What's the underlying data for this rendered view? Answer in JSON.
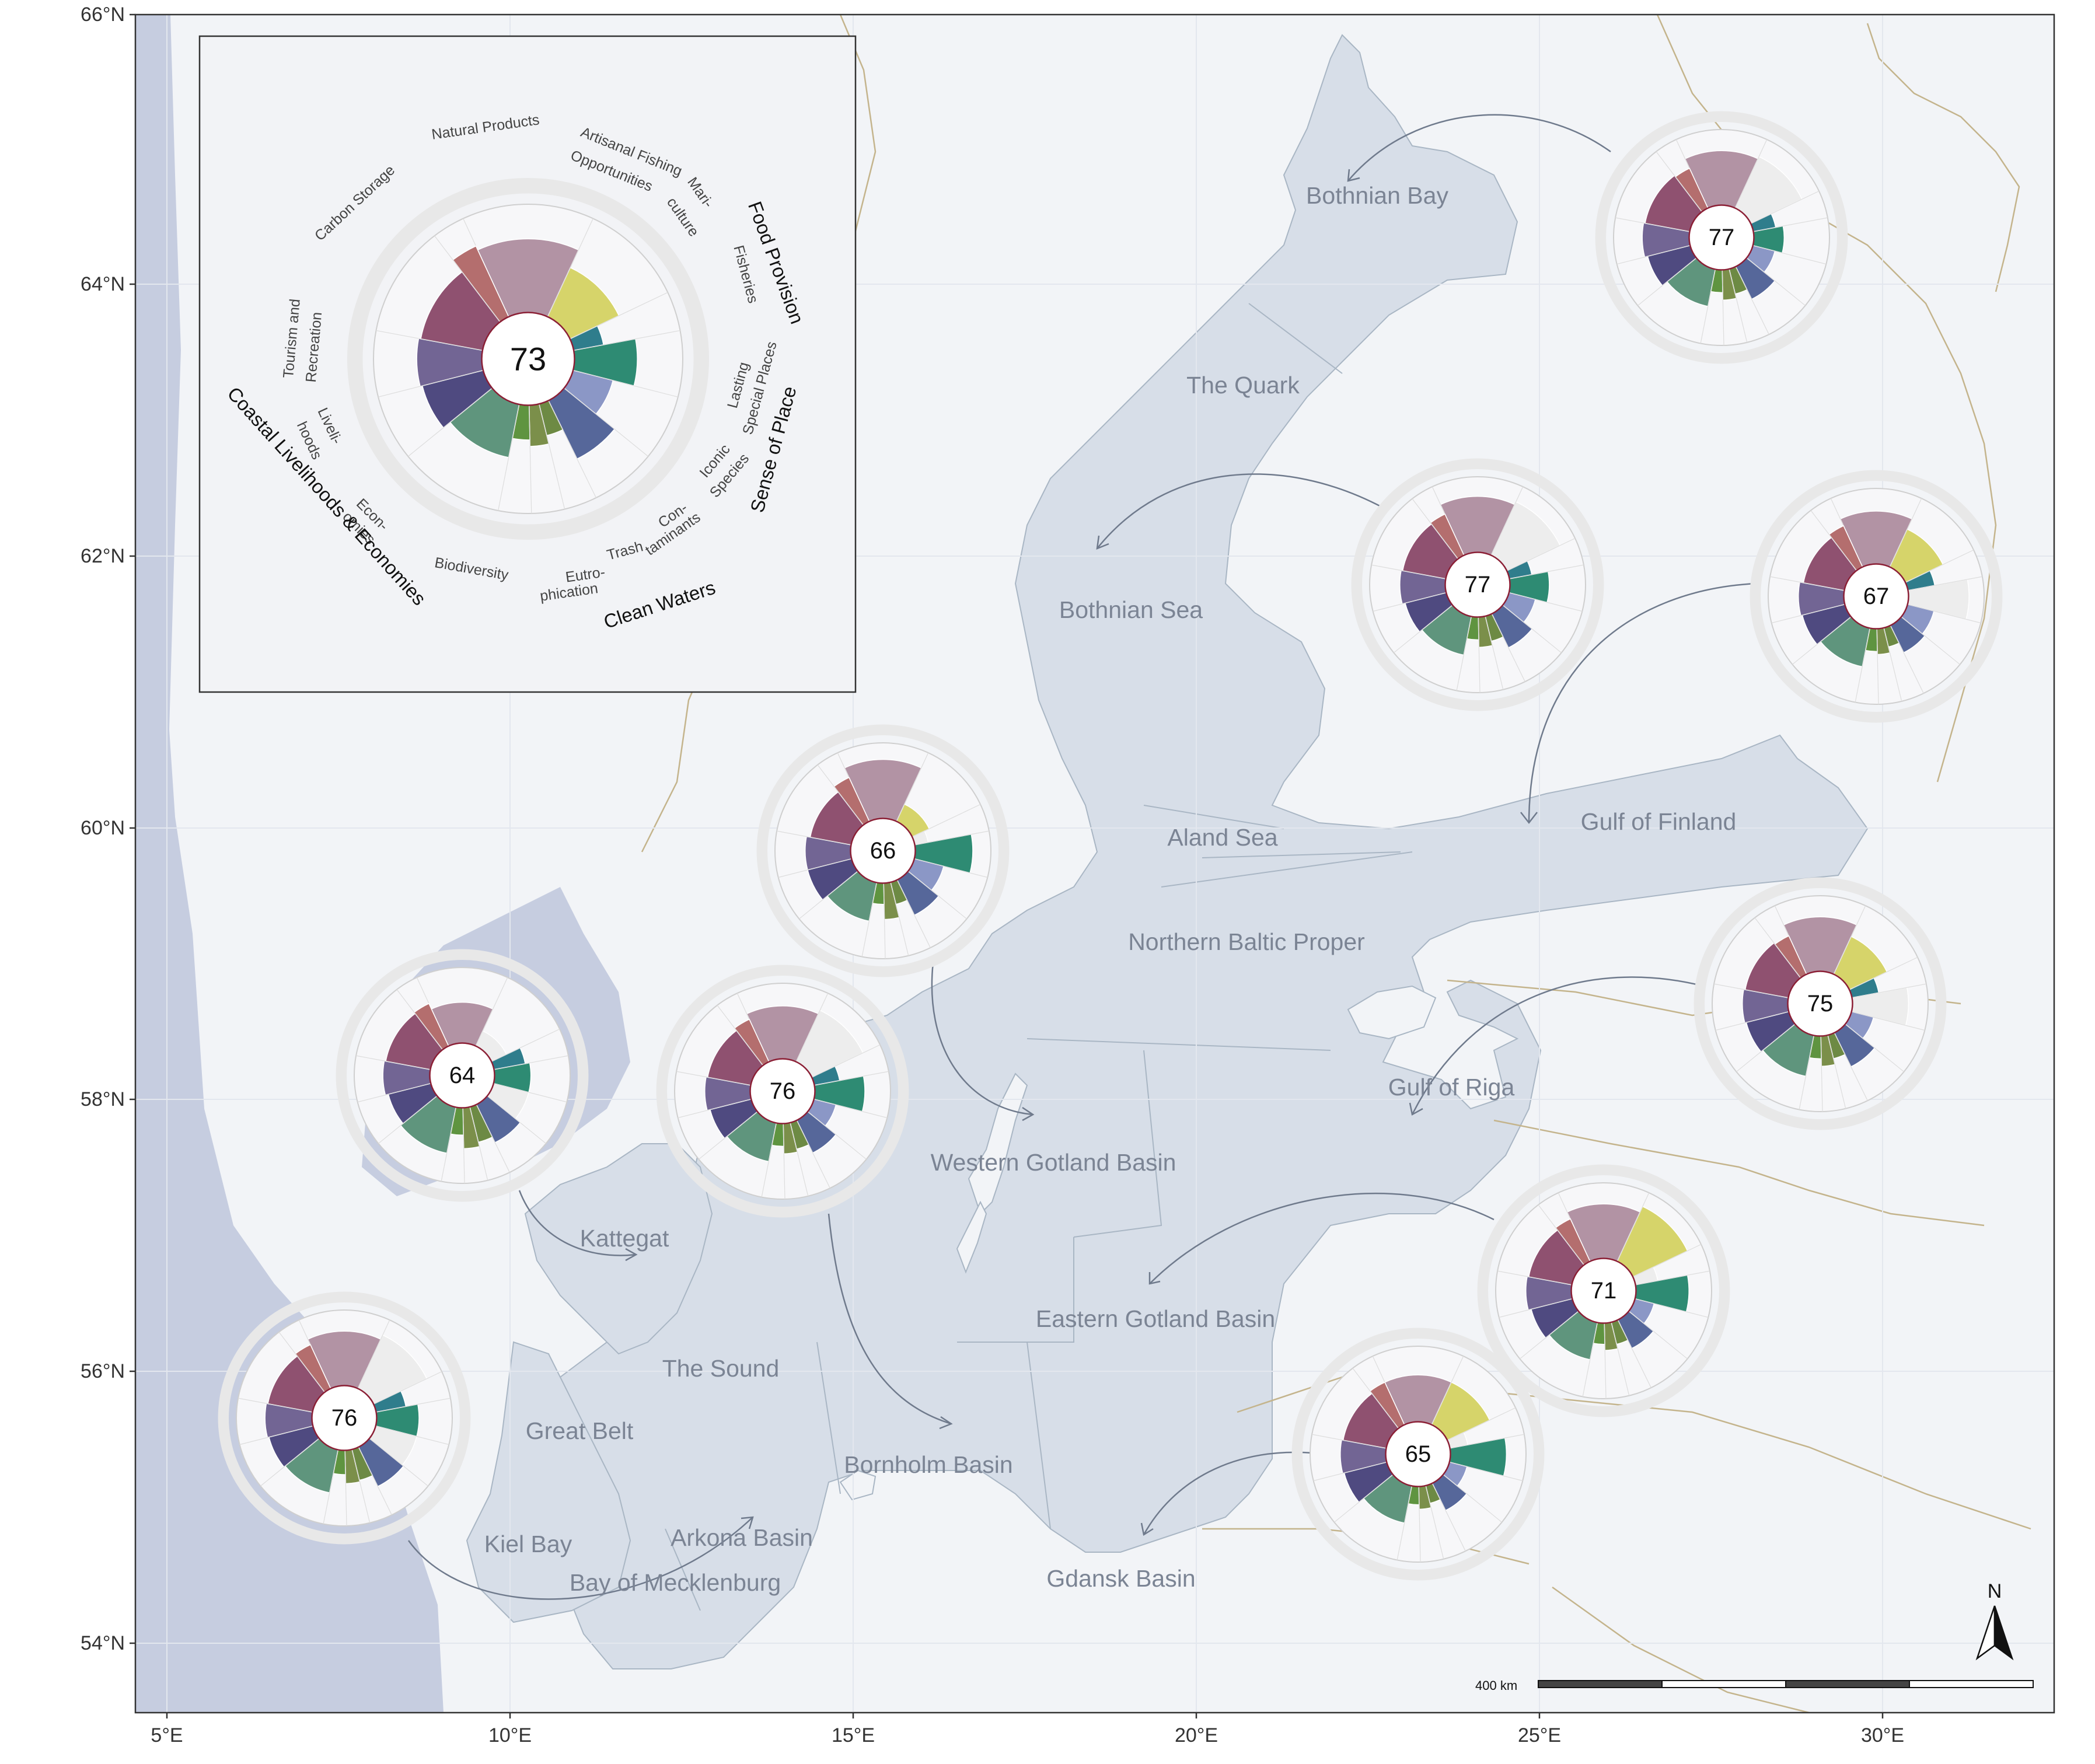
{
  "axes": {
    "lon_ticks": [
      "5°E",
      "10°E",
      "15°E",
      "20°E",
      "25°E",
      "30°E"
    ],
    "lat_ticks": [
      "54°N",
      "56°N",
      "58°N",
      "60°N",
      "62°N",
      "64°N",
      "66°N"
    ]
  },
  "colors": {
    "sea": "#d7dee8",
    "sea_west": "#c6cde0",
    "land": "#f2f4f7",
    "grid": "#e6e9ee",
    "border": "#c4b48c",
    "arrow": "#6f7a8c",
    "label": "#7b8494"
  },
  "basins": [
    {
      "name": "Bothnian Bay"
    },
    {
      "name": "The Quark"
    },
    {
      "name": "Bothnian Sea"
    },
    {
      "name": "Aland Sea"
    },
    {
      "name": "Gulf of Finland"
    },
    {
      "name": "Northern Baltic Proper"
    },
    {
      "name": "Gulf of Riga"
    },
    {
      "name": "Western Gotland Basin"
    },
    {
      "name": "Kattegat"
    },
    {
      "name": "Eastern Gotland Basin"
    },
    {
      "name": "The Sound"
    },
    {
      "name": "Great Belt"
    },
    {
      "name": "Bornholm Basin"
    },
    {
      "name": "Kiel Bay"
    },
    {
      "name": "Arkona Basin"
    },
    {
      "name": "Bay of Mecklenburg"
    },
    {
      "name": "Gdansk Basin"
    }
  ],
  "goal_colors": {
    "NP": "#b293a4",
    "AO": "#d6d46a",
    "MAR": "#2f7d8c",
    "FIS": "#2e8b73",
    "LSP": "#8b97c6",
    "ICO": "#56679a",
    "CON": "#6d8a44",
    "TRA": "#7b8f4a",
    "EUT": "#5f9440",
    "BD": "#5f957d",
    "ECO": "#4f4a80",
    "LIV": "#726594",
    "TR": "#8f5170",
    "CS": "#b46e6e",
    "NA": "#ededed"
  },
  "inset": {
    "score": "73",
    "goal_labels": [
      "Natural Products",
      "Carbon Storage",
      "Artisanal Fishing",
      "Opportunities",
      "Mari-",
      "culture",
      "Fisheries",
      "Tourism and",
      "Recreation",
      "Lasting",
      "Special Places",
      "Iconic",
      "Species",
      "Liveli-",
      "hoods",
      "Econ-",
      "omies",
      "Biodiversity",
      "Eutro-",
      "phication",
      "Trash",
      "Con-",
      "taminants"
    ],
    "categories": [
      "Food Provision",
      "Sense of Place",
      "Clean Waters",
      "Coastal Livelihoods & Economies"
    ],
    "petals": [
      0.68,
      0.5,
      0.28,
      0.58,
      0.38,
      0.6,
      0.3,
      0.38,
      0.32,
      0.5,
      0.58,
      0.6,
      0.58,
      0.72,
      0.12
    ]
  },
  "flowers": [
    {
      "score": "77",
      "petals": [
        0.72,
        0.75,
        0.3,
        0.4,
        0.3,
        0.48,
        0.34,
        0.4,
        0.3,
        0.5,
        0.58,
        0.62,
        0.6,
        0.58,
        0.1
      ],
      "na": [
        1
      ]
    },
    {
      "score": "77",
      "petals": [
        0.74,
        0.78,
        0.3,
        0.52,
        0.36,
        0.5,
        0.34,
        0.4,
        0.3,
        0.52,
        0.56,
        0.6,
        0.58,
        0.6,
        0.1
      ],
      "na": [
        1
      ]
    },
    {
      "score": "67",
      "petals": [
        0.7,
        0.55,
        0.36,
        0.8,
        0.36,
        0.4,
        0.26,
        0.34,
        0.3,
        0.52,
        0.58,
        0.6,
        0.55,
        0.6,
        0.12
      ],
      "na": [
        3
      ]
    },
    {
      "score": "66",
      "petals": [
        0.78,
        0.25,
        0.18,
        0.76,
        0.4,
        0.52,
        0.3,
        0.48,
        0.28,
        0.52,
        0.6,
        0.6,
        0.55,
        0.64,
        0.32
      ],
      "na": [
        2
      ]
    },
    {
      "score": "75",
      "petals": [
        0.72,
        0.55,
        0.36,
        0.74,
        0.3,
        0.5,
        0.32,
        0.4,
        0.3,
        0.55,
        0.58,
        0.6,
        0.58,
        0.56,
        0.12
      ],
      "na": [
        3
      ]
    },
    {
      "score": "64",
      "petals": [
        0.54,
        0.22,
        0.42,
        0.48,
        0.48,
        0.56,
        0.48,
        0.54,
        0.36,
        0.62,
        0.58,
        0.62,
        0.6,
        0.62,
        0.3
      ],
      "na": [
        1,
        4
      ]
    },
    {
      "score": "76",
      "petals": [
        0.7,
        0.75,
        0.34,
        0.66,
        0.3,
        0.48,
        0.36,
        0.4,
        0.3,
        0.52,
        0.56,
        0.6,
        0.58,
        0.62,
        0.12
      ],
      "na": [
        1
      ]
    },
    {
      "score": "71",
      "petals": [
        0.72,
        0.8,
        0.3,
        0.7,
        0.26,
        0.42,
        0.3,
        0.36,
        0.28,
        0.5,
        0.56,
        0.6,
        0.58,
        0.62,
        0.1
      ],
      "na": [
        2
      ]
    },
    {
      "score": "65",
      "petals": [
        0.62,
        0.62,
        0.24,
        0.74,
        0.24,
        0.4,
        0.24,
        0.3,
        0.24,
        0.5,
        0.58,
        0.6,
        0.58,
        0.62,
        0.12
      ],
      "na": [
        2
      ]
    },
    {
      "score": "76",
      "petals": [
        0.72,
        0.78,
        0.4,
        0.56,
        0.56,
        0.58,
        0.42,
        0.44,
        0.32,
        0.58,
        0.6,
        0.62,
        0.6,
        0.64,
        0.16
      ],
      "na": [
        1,
        4
      ]
    }
  ],
  "scale_bar": {
    "label": "400 km"
  },
  "north_arrow": {
    "label": "N"
  }
}
